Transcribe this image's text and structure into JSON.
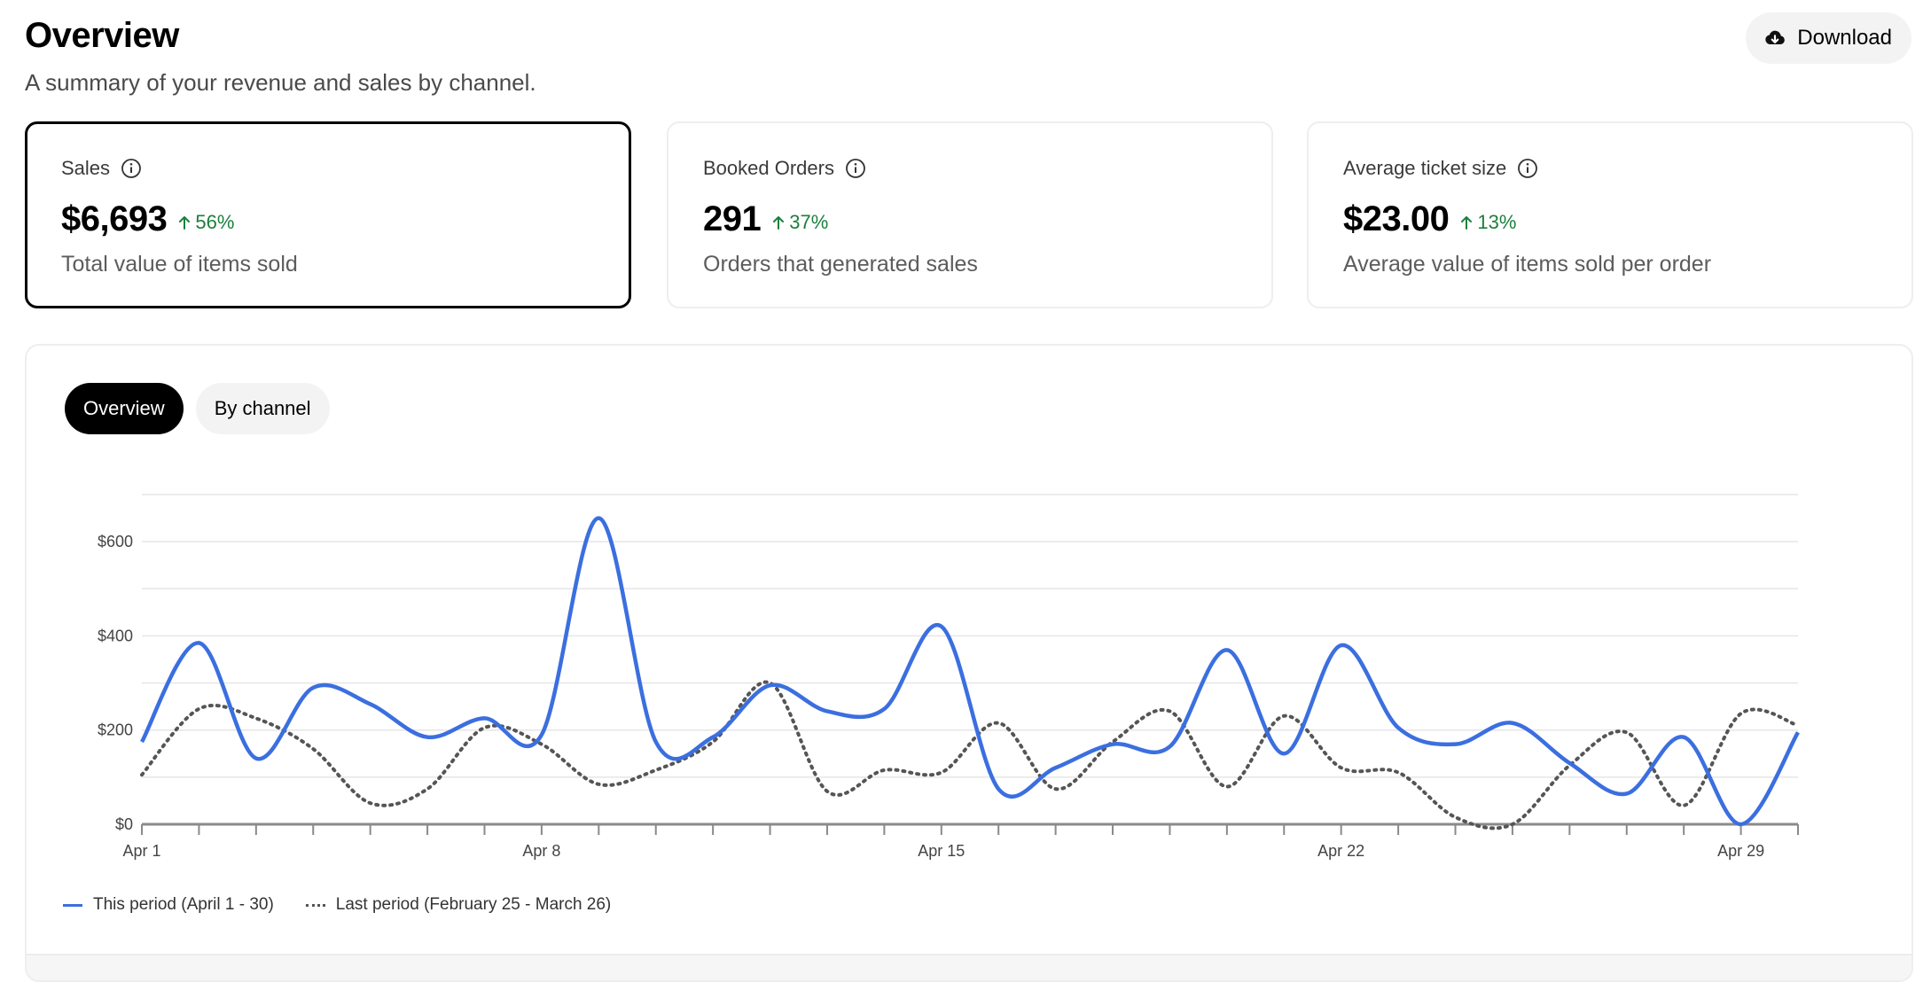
{
  "header": {
    "title": "Overview",
    "subtitle": "A summary of your revenue and sales by channel.",
    "download_label": "Download"
  },
  "cards": [
    {
      "label": "Sales",
      "value": "$6,693",
      "delta": "56%",
      "description": "Total value of items sold",
      "selected": true
    },
    {
      "label": "Booked Orders",
      "value": "291",
      "delta": "37%",
      "description": "Orders that generated sales",
      "selected": false
    },
    {
      "label": "Average ticket size",
      "value": "$23.00",
      "delta": "13%",
      "description": "Average value of items sold per order",
      "selected": false
    }
  ],
  "tabs": [
    {
      "label": "Overview",
      "active": true
    },
    {
      "label": "By channel",
      "active": false
    }
  ],
  "legend": {
    "this_period": "This period (April 1 - 30)",
    "last_period": "Last period (February 25 - March 26)"
  },
  "colors": {
    "this_period": "#3b6fe0",
    "last_period": "#555555",
    "positive_delta": "#1b7f3b"
  },
  "chart_data": {
    "type": "line",
    "x": [
      "Apr 1",
      "Apr 2",
      "Apr 3",
      "Apr 4",
      "Apr 5",
      "Apr 6",
      "Apr 7",
      "Apr 8",
      "Apr 9",
      "Apr 10",
      "Apr 11",
      "Apr 12",
      "Apr 13",
      "Apr 14",
      "Apr 15",
      "Apr 16",
      "Apr 17",
      "Apr 18",
      "Apr 19",
      "Apr 20",
      "Apr 21",
      "Apr 22",
      "Apr 23",
      "Apr 24",
      "Apr 25",
      "Apr 26",
      "Apr 27",
      "Apr 28",
      "Apr 29",
      "Apr 30"
    ],
    "x_tick_labels": [
      "Apr 1",
      "Apr 8",
      "Apr 15",
      "Apr 22",
      "Apr 29"
    ],
    "y_tick_labels": [
      "$0",
      "$200",
      "$400",
      "$600"
    ],
    "ylim": [
      0,
      700
    ],
    "grid": true,
    "legend_position": "bottom-left",
    "series": [
      {
        "name": "This period (April 1 - 30)",
        "style": "solid",
        "values": [
          175,
          385,
          140,
          290,
          255,
          185,
          225,
          190,
          650,
          175,
          185,
          295,
          240,
          245,
          420,
          75,
          120,
          170,
          165,
          370,
          150,
          380,
          205,
          170,
          215,
          130,
          65,
          185,
          0,
          195
        ]
      },
      {
        "name": "Last period (February 25 - March 26)",
        "style": "dotted",
        "values": [
          105,
          245,
          225,
          160,
          45,
          75,
          205,
          170,
          85,
          115,
          175,
          300,
          70,
          115,
          110,
          215,
          75,
          175,
          240,
          80,
          230,
          120,
          110,
          15,
          0,
          125,
          195,
          40,
          235,
          210
        ]
      }
    ]
  }
}
